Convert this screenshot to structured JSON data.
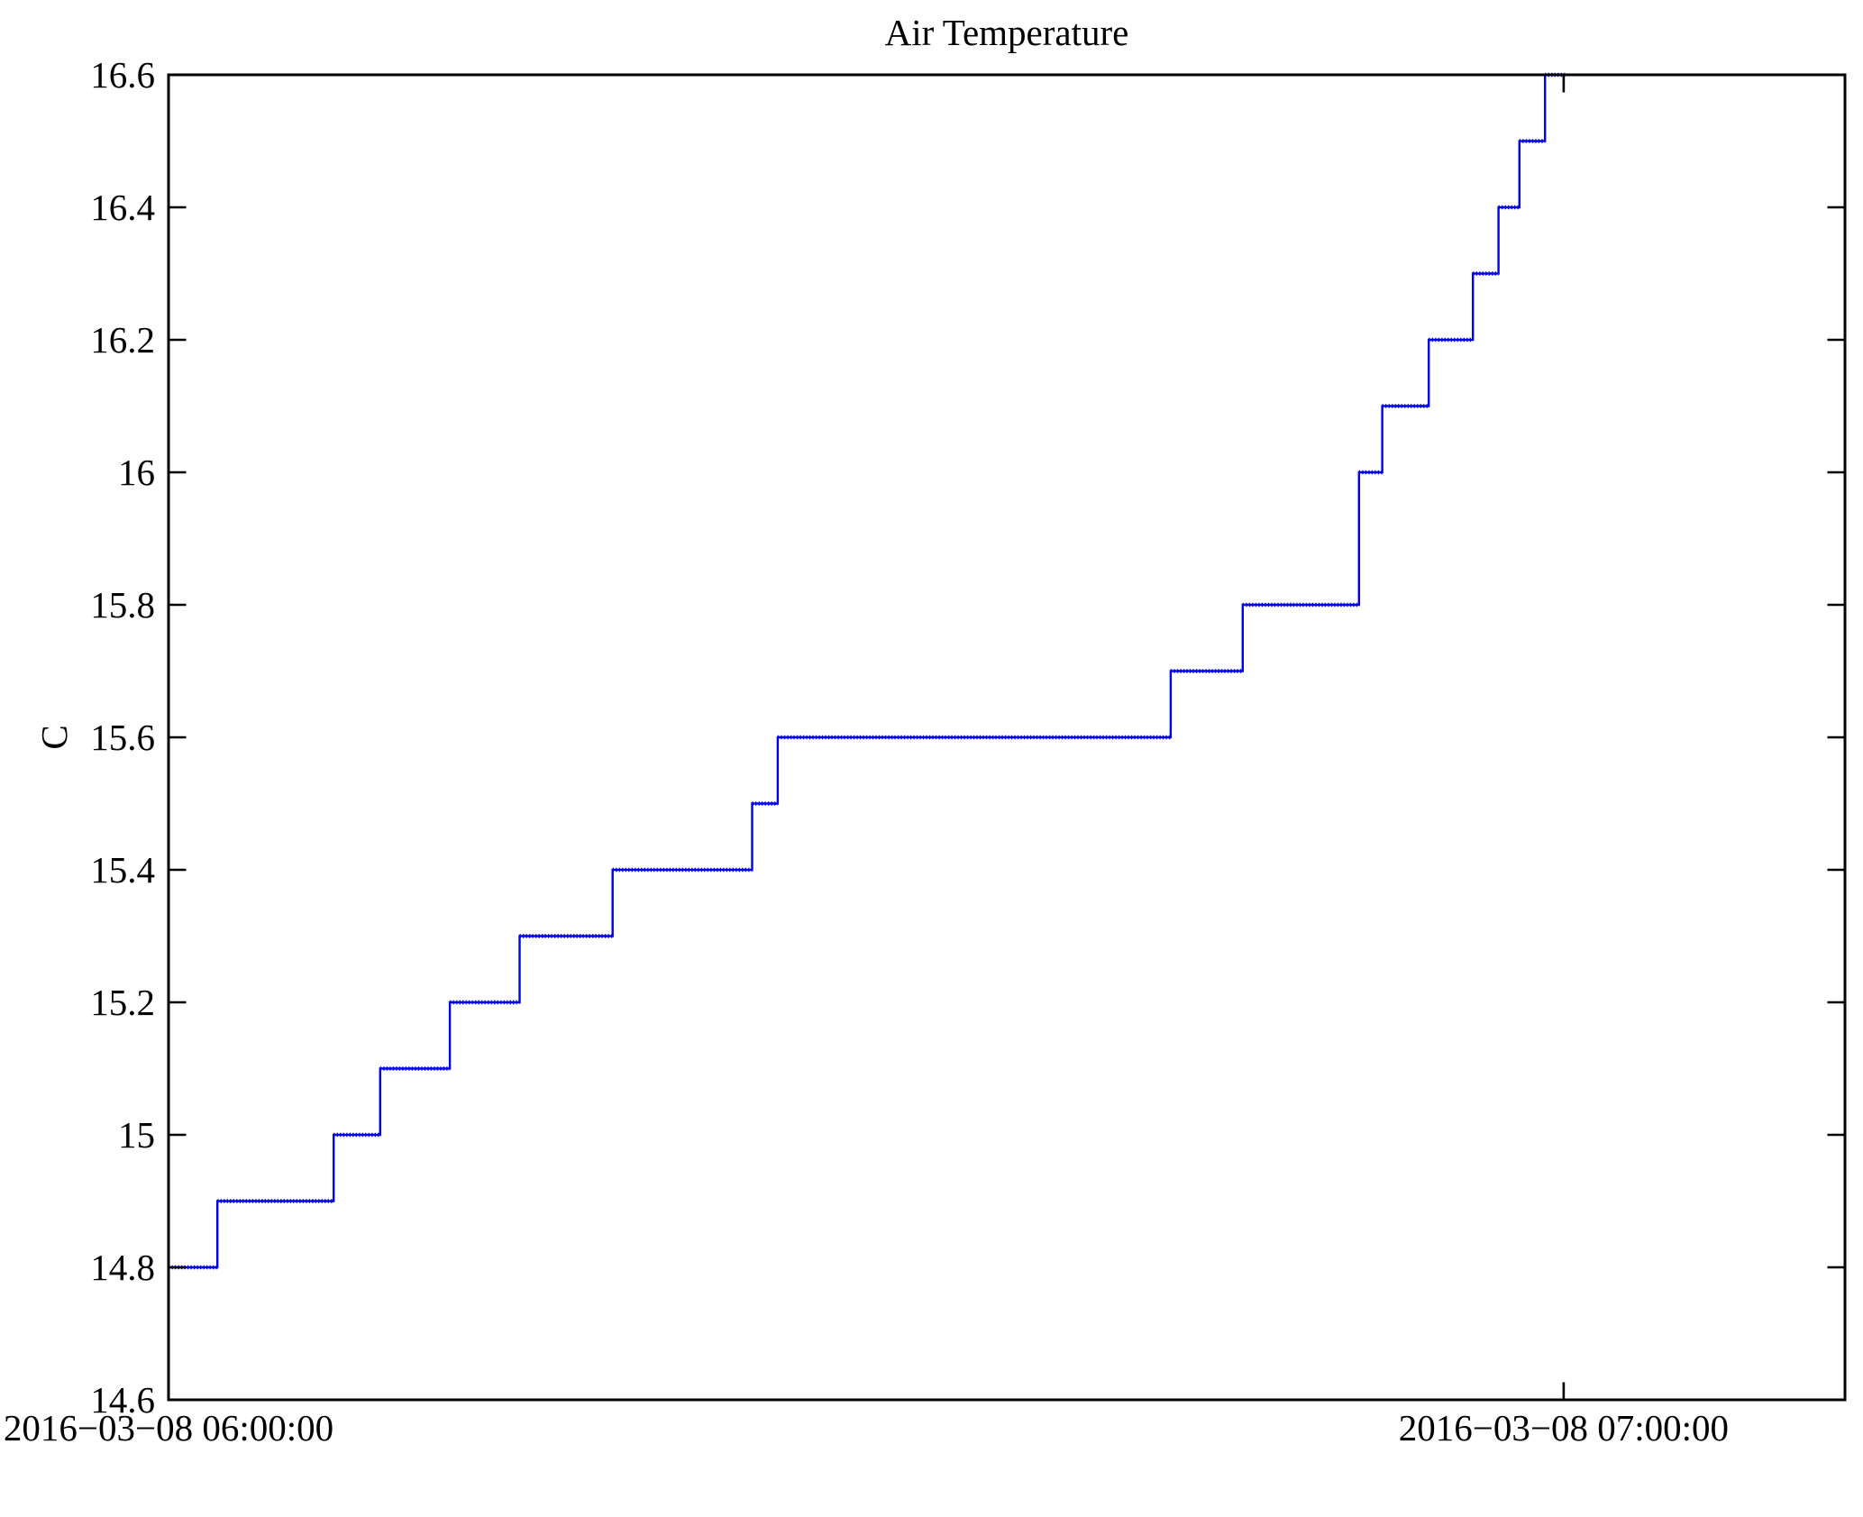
{
  "title": "Air Temperature",
  "y_axis": {
    "label": "C",
    "range": [
      14.6,
      16.6
    ],
    "ticks": [
      {
        "value": 14.6,
        "label": "14.6"
      },
      {
        "value": 14.8,
        "label": "14.8"
      },
      {
        "value": 15.0,
        "label": "15"
      },
      {
        "value": 15.2,
        "label": "15.2"
      },
      {
        "value": 15.4,
        "label": "15.4"
      },
      {
        "value": 15.6,
        "label": "15.6"
      },
      {
        "value": 15.8,
        "label": "15.8"
      },
      {
        "value": 16.0,
        "label": "16"
      },
      {
        "value": 16.2,
        "label": "16.2"
      },
      {
        "value": 16.4,
        "label": "16.4"
      },
      {
        "value": 16.6,
        "label": "16.6"
      }
    ]
  },
  "x_axis": {
    "range_minutes": [
      0,
      72.1
    ],
    "ticks": [
      {
        "minutes": 0,
        "label": "2016−03−08 06:00:00"
      },
      {
        "minutes": 60,
        "label": "2016−03−08 07:00:00"
      }
    ]
  },
  "colors": {
    "line": "#0000EE",
    "axis": "#000000",
    "background": "#FFFFFF"
  },
  "chart_data": {
    "type": "line",
    "step_mode": "after",
    "title": "Air Temperature",
    "xlabel": "",
    "ylabel": "C",
    "grid": false,
    "legend": null,
    "ylim": [
      14.6,
      16.6
    ],
    "xlim_minutes_after_start": [
      0,
      72.1
    ],
    "x_unit": "minutes after 2016-03-08 06:00:00",
    "x": [
      0,
      2.1,
      7.1,
      9.1,
      12.1,
      15.1,
      19.1,
      25.1,
      26.2,
      43.1,
      46.2,
      51.2,
      52.2,
      54.2,
      56.1,
      57.2,
      58.1,
      59.2,
      60.1
    ],
    "y": [
      14.8,
      14.9,
      15.0,
      15.1,
      15.2,
      15.3,
      15.4,
      15.5,
      15.6,
      15.7,
      15.8,
      16.0,
      16.1,
      16.2,
      16.3,
      16.4,
      16.5,
      16.6,
      16.6
    ],
    "step_times_approx": [
      "06:00:00",
      "06:02:06",
      "06:07:06",
      "06:09:06",
      "06:12:06",
      "06:15:06",
      "06:19:06",
      "06:25:06",
      "06:26:12",
      "06:43:06",
      "06:46:12",
      "06:51:12",
      "06:52:12",
      "06:54:12",
      "06:56:06",
      "06:57:12",
      "06:58:06",
      "06:59:12",
      "07:00:06"
    ],
    "xticklabels": [
      "2016−03−08 06:00:00",
      "2016−03−08 07:00:00"
    ],
    "yticklabels": [
      "14.6",
      "14.8",
      "15",
      "15.2",
      "15.4",
      "15.6",
      "15.8",
      "16",
      "16.2",
      "16.4",
      "16.6"
    ]
  }
}
